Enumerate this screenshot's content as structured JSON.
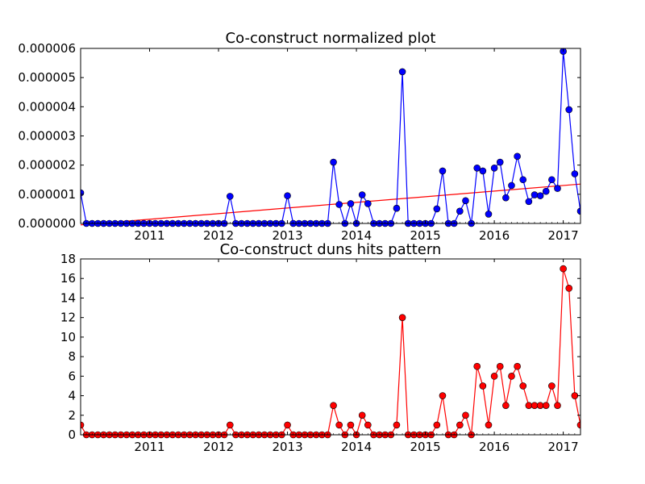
{
  "chart_data": [
    {
      "type": "line",
      "title": "Co-construct normalized plot",
      "xlabel": "",
      "ylabel": "",
      "x_axis": {
        "start": "2010-01",
        "end": "2017-04",
        "tick_labels": [
          "2011",
          "2012",
          "2013",
          "2014",
          "2015",
          "2016",
          "2017"
        ]
      },
      "ylim": [
        0,
        6e-06
      ],
      "y_tick_labels": [
        "0.000000",
        "0.000001",
        "0.000002",
        "0.000003",
        "0.000004",
        "0.000005",
        "0.000006"
      ],
      "grid": false,
      "legend": "none",
      "colors": {
        "series": "#0000ff",
        "trend": "#ff0000"
      },
      "series": [
        {
          "values": [
            1.05e-06,
            0,
            0,
            0,
            0,
            0,
            0,
            0,
            0,
            0,
            0,
            0,
            0,
            0,
            0,
            0,
            0,
            0,
            0,
            0,
            0,
            0,
            0,
            0,
            0,
            0,
            9.3e-07,
            0,
            0,
            0,
            0,
            0,
            0,
            0,
            0,
            0,
            9.5e-07,
            0,
            0,
            0,
            0,
            0,
            0,
            0,
            2.1e-06,
            6.5e-07,
            0,
            6.8e-07,
            0,
            9.8e-07,
            6.8e-07,
            0,
            0,
            0,
            0,
            5.2e-07,
            5.2e-06,
            0,
            0,
            0,
            0,
            0,
            5e-07,
            1.8e-06,
            0,
            0,
            4.2e-07,
            7.8e-07,
            0,
            1.9e-06,
            1.8e-06,
            3.2e-07,
            1.9e-06,
            2.1e-06,
            8.8e-07,
            1.3e-06,
            2.3e-06,
            1.5e-06,
            7.5e-07,
            9.8e-07,
            9.5e-07,
            1.1e-06,
            1.5e-06,
            1.2e-06,
            5.9e-06,
            3.9e-06,
            1.7e-06,
            4.2e-07
          ]
        }
      ],
      "trend_line": {
        "start_value": -5e-08,
        "end_value": 1.35e-06
      }
    },
    {
      "type": "line",
      "title": "Co-construct duns hits pattern",
      "xlabel": "",
      "ylabel": "",
      "x_axis": {
        "start": "2010-01",
        "end": "2017-04",
        "tick_labels": [
          "2011",
          "2012",
          "2013",
          "2014",
          "2015",
          "2016",
          "2017"
        ]
      },
      "ylim": [
        0,
        18
      ],
      "y_tick_labels": [
        "0",
        "2",
        "4",
        "6",
        "8",
        "10",
        "12",
        "14",
        "16",
        "18"
      ],
      "grid": false,
      "legend": "none",
      "colors": {
        "series": "#ff0000"
      },
      "series": [
        {
          "values": [
            1,
            0,
            0,
            0,
            0,
            0,
            0,
            0,
            0,
            0,
            0,
            0,
            0,
            0,
            0,
            0,
            0,
            0,
            0,
            0,
            0,
            0,
            0,
            0,
            0,
            0,
            1,
            0,
            0,
            0,
            0,
            0,
            0,
            0,
            0,
            0,
            1,
            0,
            0,
            0,
            0,
            0,
            0,
            0,
            3,
            1,
            0,
            1,
            0,
            2,
            1,
            0,
            0,
            0,
            0,
            1,
            12,
            0,
            0,
            0,
            0,
            0,
            1,
            4,
            0,
            0,
            1,
            2,
            0,
            7,
            5,
            1,
            6,
            7,
            3,
            6,
            7,
            5,
            3,
            3,
            3,
            3,
            5,
            3,
            17,
            15,
            4,
            1
          ]
        }
      ]
    }
  ]
}
